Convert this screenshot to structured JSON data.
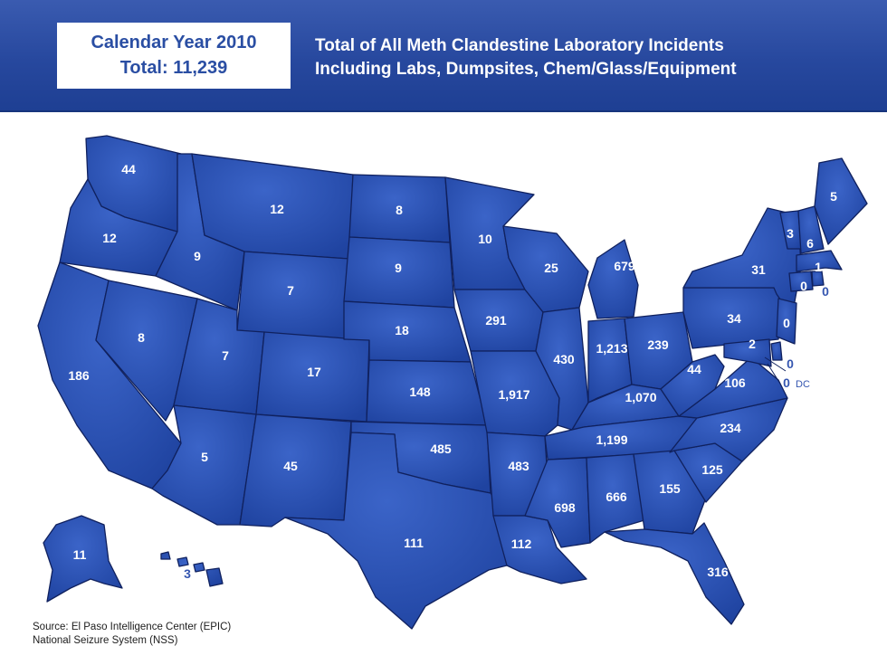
{
  "header": {
    "year_label": "Calendar Year 2010",
    "total_label": "Total: 11,239",
    "title_line1": "Total of All Meth Clandestine Laboratory Incidents",
    "title_line2": "Including Labs, Dumpsites, Chem/Glass/Equipment"
  },
  "map_colors": {
    "fill": "#2b52b3",
    "border": "#10215e",
    "label": "#ffffff",
    "outside_label": "#3556b0"
  },
  "states": [
    {
      "code": "WA",
      "value": "44"
    },
    {
      "code": "OR",
      "value": "12"
    },
    {
      "code": "CA",
      "value": "186"
    },
    {
      "code": "NV",
      "value": "8"
    },
    {
      "code": "ID",
      "value": "9"
    },
    {
      "code": "MT",
      "value": "12"
    },
    {
      "code": "WY",
      "value": "7"
    },
    {
      "code": "UT",
      "value": "7"
    },
    {
      "code": "AZ",
      "value": "5"
    },
    {
      "code": "CO",
      "value": "17"
    },
    {
      "code": "NM",
      "value": "45"
    },
    {
      "code": "ND",
      "value": "8"
    },
    {
      "code": "SD",
      "value": "9"
    },
    {
      "code": "NE",
      "value": "18"
    },
    {
      "code": "KS",
      "value": "148"
    },
    {
      "code": "OK",
      "value": "485"
    },
    {
      "code": "TX",
      "value": "111"
    },
    {
      "code": "MN",
      "value": "10"
    },
    {
      "code": "IA",
      "value": "291"
    },
    {
      "code": "MO",
      "value": "1,917"
    },
    {
      "code": "AR",
      "value": "483"
    },
    {
      "code": "LA",
      "value": "112"
    },
    {
      "code": "WI",
      "value": "25"
    },
    {
      "code": "IL",
      "value": "430"
    },
    {
      "code": "MI",
      "value": "679"
    },
    {
      "code": "IN",
      "value": "1,213"
    },
    {
      "code": "OH",
      "value": "239"
    },
    {
      "code": "KY",
      "value": "1,070"
    },
    {
      "code": "TN",
      "value": "1,199"
    },
    {
      "code": "MS",
      "value": "698"
    },
    {
      "code": "AL",
      "value": "666"
    },
    {
      "code": "GA",
      "value": "155"
    },
    {
      "code": "FL",
      "value": "316"
    },
    {
      "code": "SC",
      "value": "125"
    },
    {
      "code": "NC",
      "value": "234"
    },
    {
      "code": "VA",
      "value": "106"
    },
    {
      "code": "WV",
      "value": "44"
    },
    {
      "code": "PA",
      "value": "34"
    },
    {
      "code": "NY",
      "value": "31"
    },
    {
      "code": "VT",
      "value": "3"
    },
    {
      "code": "NH",
      "value": "6"
    },
    {
      "code": "ME",
      "value": "5"
    },
    {
      "code": "MA",
      "value": "1"
    },
    {
      "code": "CT",
      "value": "0"
    },
    {
      "code": "RI",
      "value": "0"
    },
    {
      "code": "NJ",
      "value": "0"
    },
    {
      "code": "DE",
      "value": "0"
    },
    {
      "code": "MD",
      "value": "2"
    },
    {
      "code": "DC",
      "value": "0",
      "suffix": "DC"
    },
    {
      "code": "AK",
      "value": "11"
    },
    {
      "code": "HI",
      "value": "3"
    }
  ],
  "source": {
    "line1": "Source: El Paso Intelligence Center (EPIC)",
    "line2": "National Seizure System (NSS)"
  }
}
